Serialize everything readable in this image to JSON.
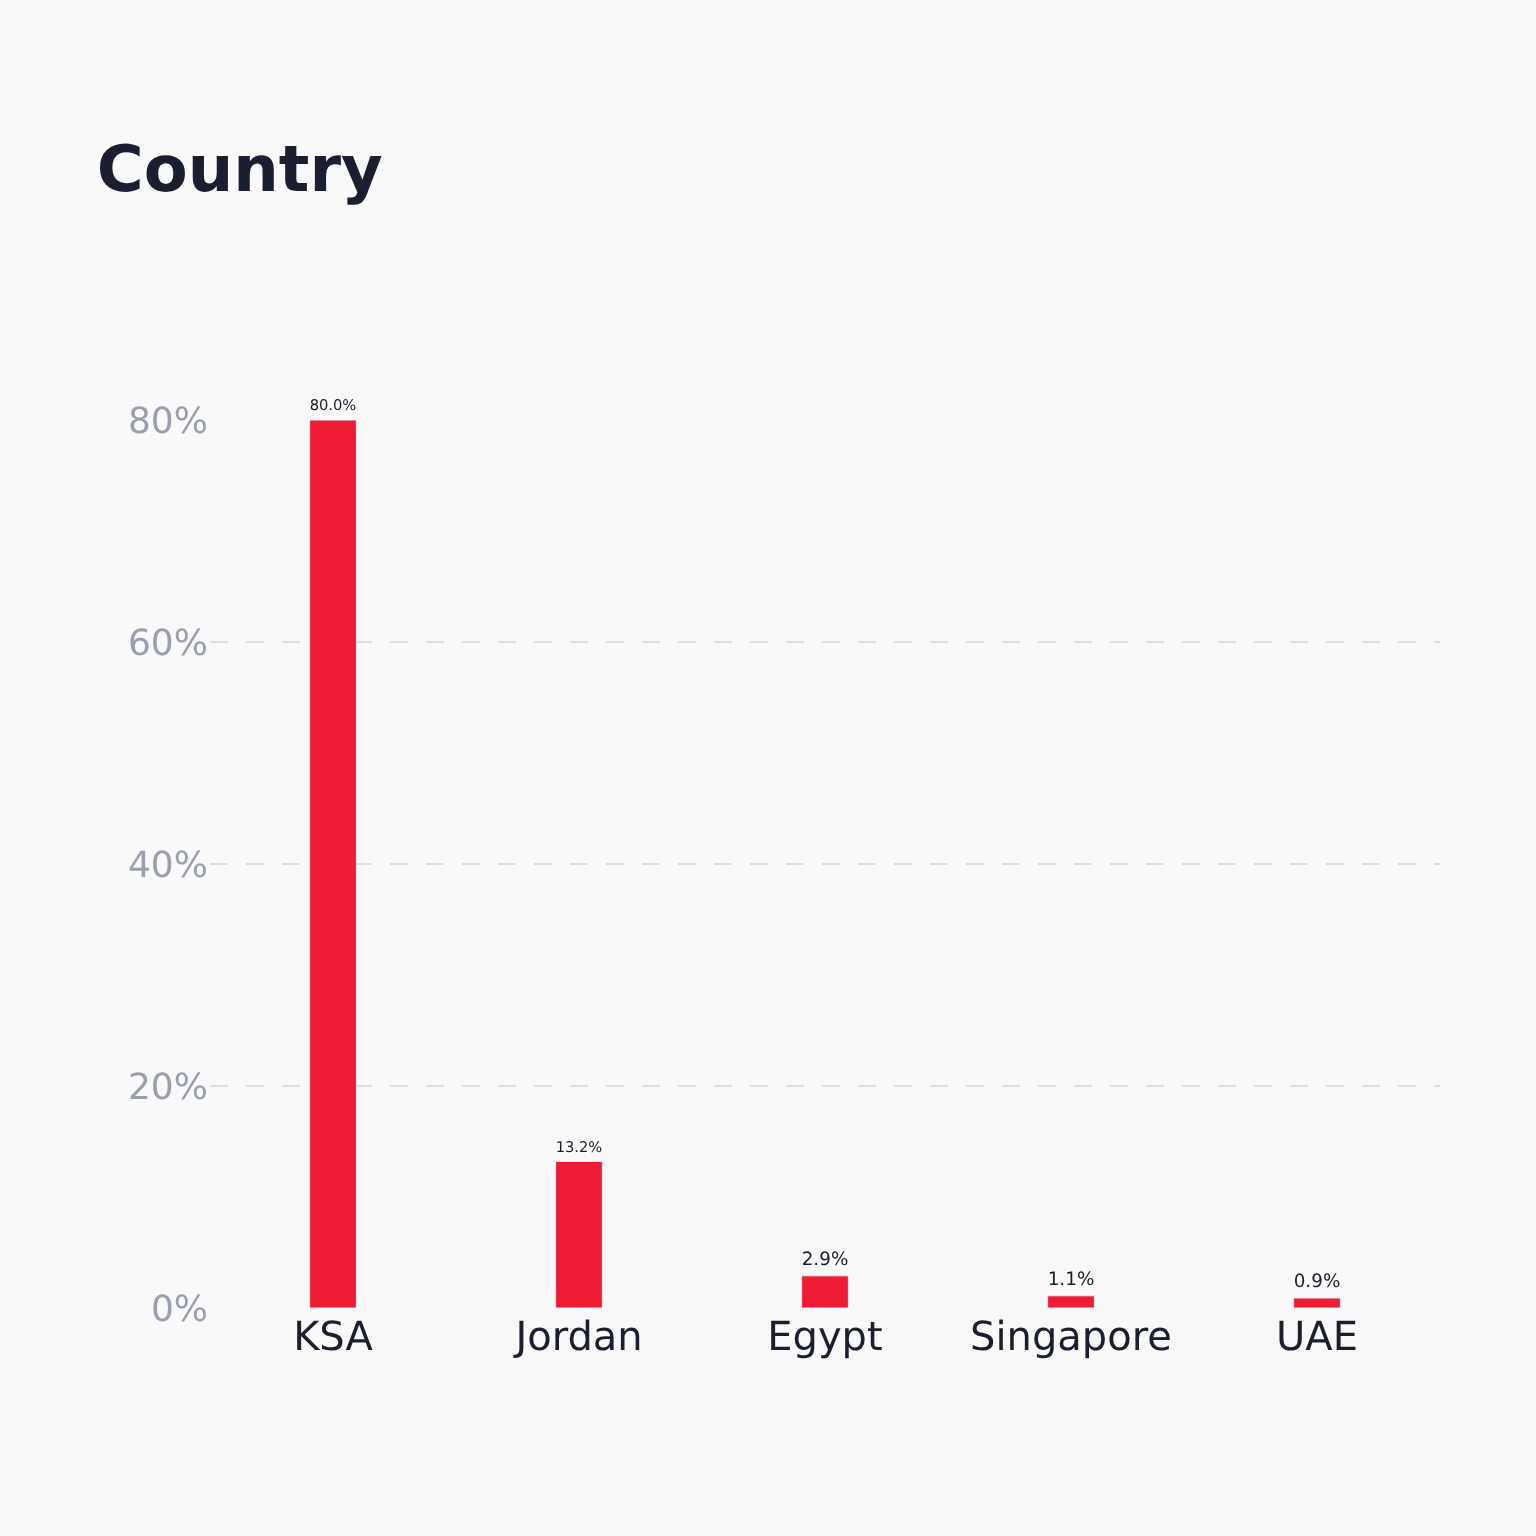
{
  "chart_data": {
    "type": "bar",
    "title": "Country",
    "categories": [
      "KSA",
      "Jordan",
      "Egypt",
      "Singapore",
      "UAE"
    ],
    "values": [
      80.0,
      13.2,
      2.9,
      1.1,
      0.9
    ],
    "value_labels": [
      "80.0%",
      "13.2%",
      "2.9%",
      "1.1%",
      "0.9%"
    ],
    "color": "#ee1c35",
    "ylim": [
      0,
      80
    ],
    "yticks": [
      {
        "value": 0,
        "label": "0%"
      },
      {
        "value": 20,
        "label": "20%"
      },
      {
        "value": 40,
        "label": "40%"
      },
      {
        "value": 60,
        "label": "60%"
      },
      {
        "value": 80,
        "label": "80%"
      }
    ],
    "grid": "y",
    "legend": false
  }
}
